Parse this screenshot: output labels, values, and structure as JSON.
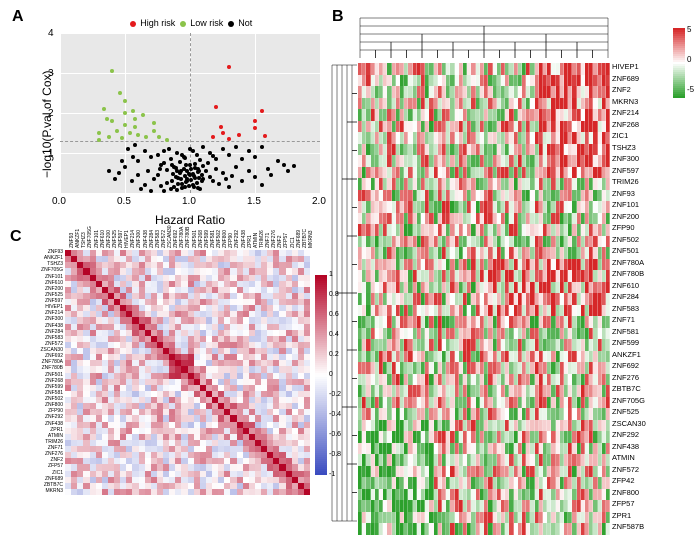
{
  "panelA": {
    "label": "A",
    "chart": {
      "type": "scatter",
      "xlabel": "Hazard Ratio",
      "ylabel": "−log10(P.val of Cox)",
      "xlim": [
        0.0,
        2.0
      ],
      "ylim": [
        0.0,
        4.0
      ],
      "xticks": [
        0.0,
        0.5,
        1.0,
        1.5,
        2.0
      ],
      "yticks": [
        1,
        2,
        3,
        4
      ],
      "background": "#e8e8e8",
      "grid_color": "#ffffff",
      "dashed_h_at": 1.3,
      "dashed_v_at": 1.0,
      "legend": [
        {
          "label": "High risk",
          "color": "#e41a1c"
        },
        {
          "label": "Low risk",
          "color": "#8bc34a"
        },
        {
          "label": "Not",
          "color": "#000000"
        }
      ],
      "points_black": [
        [
          0.62,
          0.1
        ],
        [
          0.7,
          0.05
        ],
        [
          0.78,
          0.18
        ],
        [
          0.8,
          0.05
        ],
        [
          0.82,
          0.25
        ],
        [
          0.85,
          0.1
        ],
        [
          0.86,
          0.3
        ],
        [
          0.88,
          0.15
        ],
        [
          0.89,
          0.4
        ],
        [
          0.9,
          0.08
        ],
        [
          0.91,
          0.22
        ],
        [
          0.92,
          0.5
        ],
        [
          0.93,
          0.35
        ],
        [
          0.94,
          0.12
        ],
        [
          0.95,
          0.6
        ],
        [
          0.96,
          0.42
        ],
        [
          0.97,
          0.28
        ],
        [
          0.98,
          0.55
        ],
        [
          0.99,
          0.18
        ],
        [
          1.0,
          0.7
        ],
        [
          1.01,
          0.33
        ],
        [
          1.02,
          0.48
        ],
        [
          1.03,
          0.15
        ],
        [
          1.04,
          0.62
        ],
        [
          1.05,
          0.25
        ],
        [
          1.06,
          0.52
        ],
        [
          1.07,
          0.38
        ],
        [
          1.08,
          0.1
        ],
        [
          1.09,
          0.45
        ],
        [
          1.1,
          0.68
        ],
        [
          0.75,
          0.45
        ],
        [
          0.77,
          0.6
        ],
        [
          0.8,
          0.75
        ],
        [
          0.72,
          0.35
        ],
        [
          0.68,
          0.55
        ],
        [
          0.65,
          0.2
        ],
        [
          1.12,
          0.55
        ],
        [
          1.15,
          0.4
        ],
        [
          1.18,
          0.3
        ],
        [
          1.2,
          0.6
        ],
        [
          1.22,
          0.22
        ],
        [
          1.25,
          0.5
        ],
        [
          1.28,
          0.35
        ],
        [
          1.3,
          0.15
        ],
        [
          1.32,
          0.42
        ],
        [
          1.35,
          0.65
        ],
        [
          1.4,
          0.3
        ],
        [
          1.45,
          0.55
        ],
        [
          1.5,
          0.4
        ],
        [
          1.55,
          0.2
        ],
        [
          1.6,
          0.6
        ],
        [
          1.72,
          0.7
        ],
        [
          0.55,
          0.3
        ],
        [
          0.5,
          0.65
        ],
        [
          0.45,
          0.5
        ],
        [
          0.6,
          0.8
        ],
        [
          0.85,
          0.85
        ],
        [
          0.9,
          1.0
        ],
        [
          0.95,
          0.9
        ],
        [
          1.0,
          1.1
        ],
        [
          1.05,
          0.95
        ],
        [
          1.1,
          1.15
        ],
        [
          0.8,
          1.05
        ],
        [
          0.75,
          0.95
        ],
        [
          1.15,
          1.0
        ],
        [
          1.2,
          0.85
        ],
        [
          1.25,
          1.1
        ],
        [
          0.65,
          1.05
        ],
        [
          0.7,
          0.9
        ],
        [
          1.3,
          0.95
        ],
        [
          1.35,
          1.15
        ],
        [
          1.4,
          0.85
        ],
        [
          0.88,
          0.65
        ],
        [
          0.92,
          0.78
        ],
        [
          0.96,
          0.88
        ],
        [
          1.04,
          0.72
        ],
        [
          1.08,
          0.82
        ],
        [
          0.82,
          0.58
        ],
        [
          0.86,
          0.7
        ],
        [
          0.94,
          0.95
        ],
        [
          1.02,
          1.05
        ],
        [
          1.06,
          0.6
        ],
        [
          1.14,
          0.75
        ],
        [
          1.18,
          0.92
        ],
        [
          0.98,
          0.35
        ],
        [
          0.78,
          0.7
        ],
        [
          0.84,
          1.1
        ],
        [
          0.9,
          0.55
        ],
        [
          1.0,
          0.45
        ],
        [
          1.1,
          0.35
        ],
        [
          0.6,
          0.45
        ],
        [
          0.56,
          0.9
        ],
        [
          0.48,
          0.8
        ],
        [
          0.42,
          0.35
        ],
        [
          0.38,
          0.55
        ],
        [
          0.52,
          1.1
        ],
        [
          0.58,
          1.2
        ],
        [
          1.45,
          1.05
        ],
        [
          1.5,
          0.9
        ],
        [
          1.55,
          1.15
        ],
        [
          1.62,
          0.45
        ],
        [
          1.68,
          0.8
        ],
        [
          1.75,
          0.55
        ],
        [
          1.8,
          0.68
        ],
        [
          0.94,
          0.22
        ],
        [
          0.96,
          0.15
        ],
        [
          0.98,
          0.3
        ],
        [
          1.02,
          0.2
        ],
        [
          1.04,
          0.38
        ],
        [
          1.06,
          0.12
        ],
        [
          0.87,
          0.48
        ],
        [
          0.89,
          0.62
        ],
        [
          0.91,
          0.38
        ],
        [
          0.93,
          0.55
        ],
        [
          0.97,
          0.7
        ],
        [
          0.99,
          0.48
        ],
        [
          1.01,
          0.6
        ],
        [
          1.03,
          0.42
        ],
        [
          1.07,
          0.55
        ],
        [
          1.09,
          0.3
        ]
      ],
      "points_green": [
        [
          0.4,
          3.05
        ],
        [
          0.46,
          2.5
        ],
        [
          0.5,
          2.3
        ],
        [
          0.34,
          2.1
        ],
        [
          0.5,
          2.0
        ],
        [
          0.56,
          2.05
        ],
        [
          0.36,
          1.85
        ],
        [
          0.58,
          1.85
        ],
        [
          0.64,
          1.95
        ],
        [
          0.4,
          1.8
        ],
        [
          0.5,
          1.7
        ],
        [
          0.58,
          1.65
        ],
        [
          0.72,
          1.75
        ],
        [
          0.3,
          1.5
        ],
        [
          0.44,
          1.55
        ],
        [
          0.54,
          1.5
        ],
        [
          0.6,
          1.45
        ],
        [
          0.72,
          1.55
        ],
        [
          0.38,
          1.4
        ],
        [
          0.48,
          1.38
        ],
        [
          0.66,
          1.4
        ],
        [
          0.76,
          1.4
        ],
        [
          0.3,
          1.32
        ],
        [
          0.82,
          1.32
        ]
      ],
      "points_red": [
        [
          1.3,
          3.15
        ],
        [
          1.2,
          2.15
        ],
        [
          1.55,
          2.05
        ],
        [
          1.5,
          1.8
        ],
        [
          1.24,
          1.65
        ],
        [
          1.5,
          1.62
        ],
        [
          1.25,
          1.5
        ],
        [
          1.38,
          1.45
        ],
        [
          1.58,
          1.42
        ],
        [
          1.18,
          1.4
        ],
        [
          1.3,
          1.35
        ]
      ]
    }
  },
  "panelB": {
    "label": "B",
    "heatmap": {
      "type": "heatmap",
      "ncols": 60,
      "colorbar": {
        "min": -5,
        "mid": 0,
        "max": 5,
        "low": "#2ca02c",
        "mid_c": "#ffffff",
        "high": "#d62728"
      },
      "genes": [
        "HIVEP1",
        "ZNF689",
        "ZNF2",
        "MKRN3",
        "ZNF214",
        "ZNF268",
        "ZIC1",
        "TSHZ3",
        "ZNF300",
        "ZNF597",
        "TRIM26",
        "ZNF93",
        "ZNF101",
        "ZNF200",
        "ZFP90",
        "ZNF502",
        "ZNF501",
        "ZNF780A",
        "ZNF780B",
        "ZNF610",
        "ZNF284",
        "ZNF583",
        "ZNF71",
        "ZNF581",
        "ZNF599",
        "ANKZF1",
        "ZNF692",
        "ZNF276",
        "ZBTB7C",
        "ZNF705G",
        "ZNF525",
        "ZSCAN30",
        "ZNF292",
        "ZNF438",
        "ATMIN",
        "ZNF572",
        "ZFP42",
        "ZNF800",
        "ZFP57",
        "ZPR1",
        "ZNF587B"
      ]
    }
  },
  "panelC": {
    "label": "C",
    "heatmap": {
      "type": "correlation",
      "colorbar": {
        "min": -1,
        "mid": 0,
        "max": 1,
        "ticks": [
          -1,
          -0.8,
          -0.6,
          -0.4,
          -0.2,
          0,
          0.2,
          0.4,
          0.6,
          0.8,
          1
        ],
        "low": "#3b4cc0",
        "mid_c": "#ffffff",
        "high": "#b40426"
      },
      "genes": [
        "ZNF93",
        "ANKZF1",
        "TSHZ3",
        "ZNF705G",
        "ZNF101",
        "ZNF610",
        "ZNF200",
        "ZNF525",
        "ZNF597",
        "HIVEP1",
        "ZNF214",
        "ZNF300",
        "ZNF438",
        "ZNF284",
        "ZNF583",
        "ZNF572",
        "ZSCAN30",
        "ZNF692",
        "ZNF780A",
        "ZNF780B",
        "ZNF501",
        "ZNF268",
        "ZNF599",
        "ZNF581",
        "ZNF502",
        "ZNF800",
        "ZFP90",
        "ZNF292",
        "ZNF438",
        "ZPR1",
        "ATMIN",
        "TRIM26",
        "ZNF71",
        "ZNF276",
        "ZNF2",
        "ZFP57",
        "ZIC1",
        "ZNF689",
        "ZBTB7C",
        "MKRN3"
      ]
    }
  }
}
